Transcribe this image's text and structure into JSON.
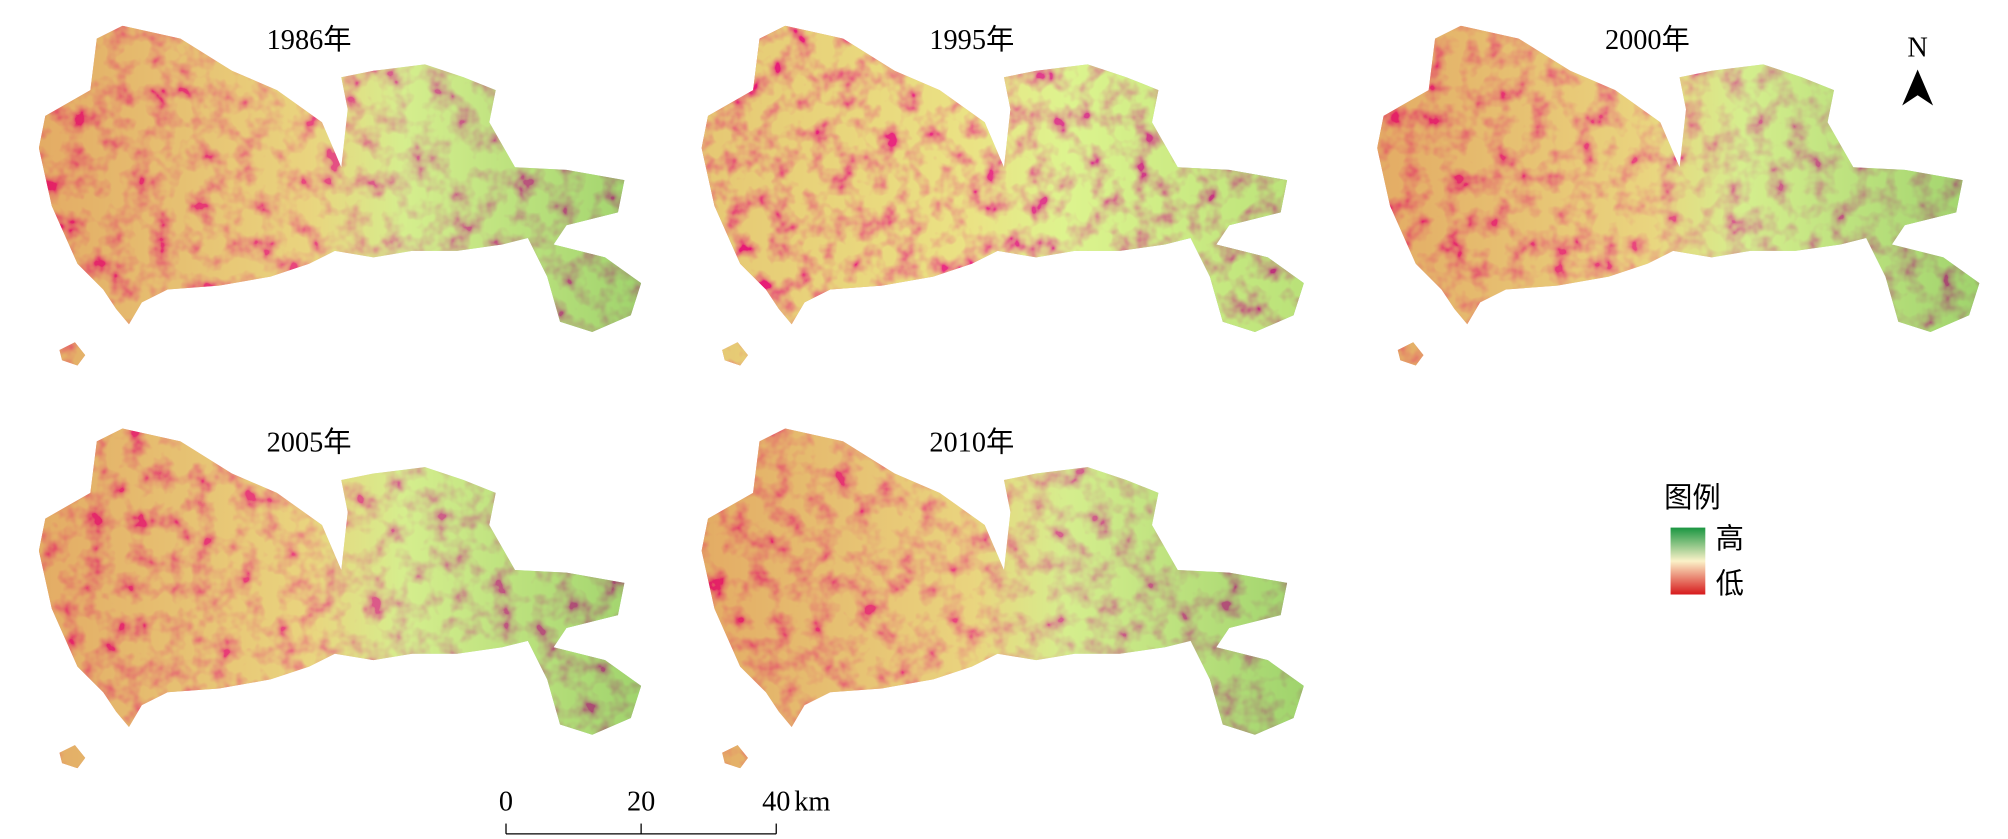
{
  "panels": [
    {
      "title": "1986年"
    },
    {
      "title": "1995年"
    },
    {
      "title": "2000年"
    },
    {
      "title": "2005年"
    },
    {
      "title": "2010年"
    }
  ],
  "north_arrow": "N",
  "legend": {
    "title": "图例",
    "high": "高",
    "low": "低"
  },
  "scale_bar": {
    "ticks": [
      0,
      20,
      40
    ],
    "unit": "km"
  }
}
